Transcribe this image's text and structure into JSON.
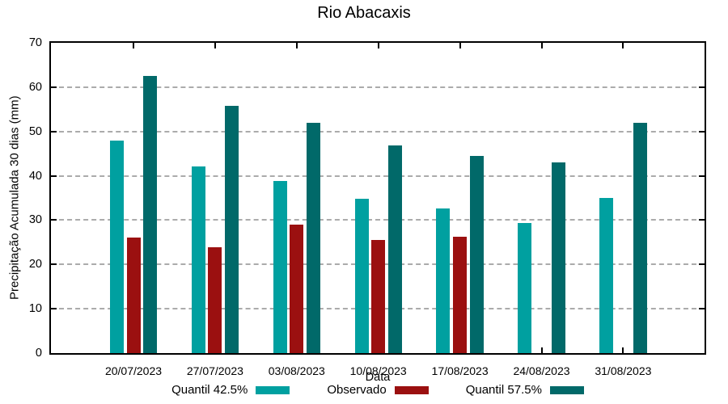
{
  "title": "Rio Abacaxis",
  "chart_data": {
    "type": "bar",
    "title": "Rio Abacaxis",
    "xlabel": "Data",
    "ylabel": "Precipitação Acumulada 30 dias (mm)",
    "ylim": [
      0,
      70
    ],
    "yticks": [
      0,
      10,
      20,
      30,
      40,
      50,
      60,
      70
    ],
    "grid": true,
    "grid_color": "#ababab",
    "legend_position": "bottom",
    "categories": [
      "20/07/2023",
      "27/07/2023",
      "03/08/2023",
      "10/08/2023",
      "17/08/2023",
      "24/08/2023",
      "31/08/2023"
    ],
    "series": [
      {
        "name": "Quantil 42.5%",
        "color": "#00A0A0",
        "values": [
          48,
          42.2,
          38.9,
          34.8,
          32.6,
          29.3,
          35
        ]
      },
      {
        "name": "Observado",
        "color": "#9B1010",
        "values": [
          26,
          23.9,
          28.9,
          25.6,
          26.3,
          null,
          null
        ]
      },
      {
        "name": "Quantil 57.5%",
        "color": "#016969",
        "values": [
          62.6,
          55.8,
          51.9,
          46.9,
          44.5,
          43,
          51.9
        ]
      }
    ]
  }
}
